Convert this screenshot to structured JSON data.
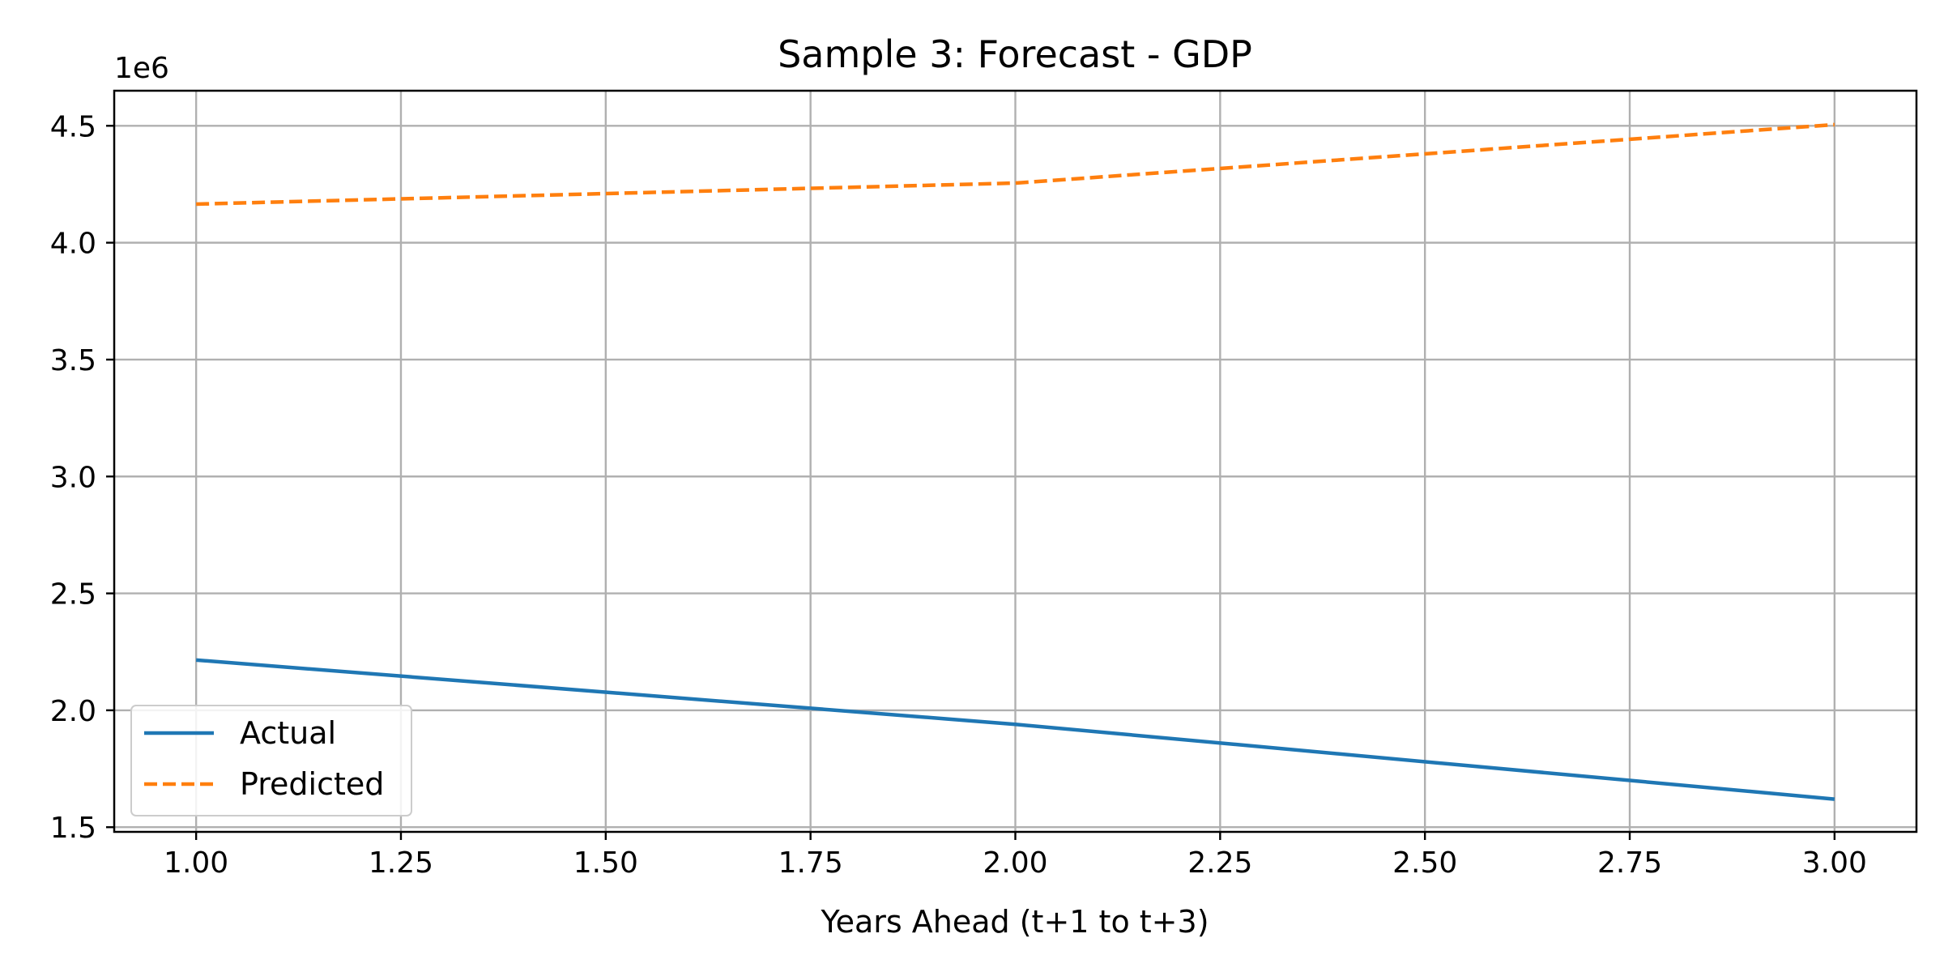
{
  "chart_data": {
    "type": "line",
    "title": "Sample 3: Forecast - GDP",
    "xlabel": "Years Ahead (t+1 to t+3)",
    "ylabel": "",
    "y_offset_label": "1e6",
    "xlim": [
      0.9,
      3.1
    ],
    "ylim": [
      1.48,
      4.65
    ],
    "x_ticks": [
      1.0,
      1.25,
      1.5,
      1.75,
      2.0,
      2.25,
      2.5,
      2.75,
      3.0
    ],
    "x_tick_labels": [
      "1.00",
      "1.25",
      "1.50",
      "1.75",
      "2.00",
      "2.25",
      "2.50",
      "2.75",
      "3.00"
    ],
    "y_ticks": [
      1.5,
      2.0,
      2.5,
      3.0,
      3.5,
      4.0,
      4.5
    ],
    "y_tick_labels": [
      "1.5",
      "2.0",
      "2.5",
      "3.0",
      "3.5",
      "4.0",
      "4.5"
    ],
    "grid": true,
    "legend_position": "lower-left",
    "series": [
      {
        "name": "Actual",
        "color": "#1f77b4",
        "style": "solid",
        "x": [
          1.0,
          2.0,
          3.0
        ],
        "values": [
          2.215,
          1.94,
          1.62
        ]
      },
      {
        "name": "Predicted",
        "color": "#ff7f0e",
        "style": "dashed",
        "x": [
          1.0,
          2.0,
          3.0
        ],
        "values": [
          4.165,
          4.255,
          4.505
        ]
      }
    ]
  }
}
